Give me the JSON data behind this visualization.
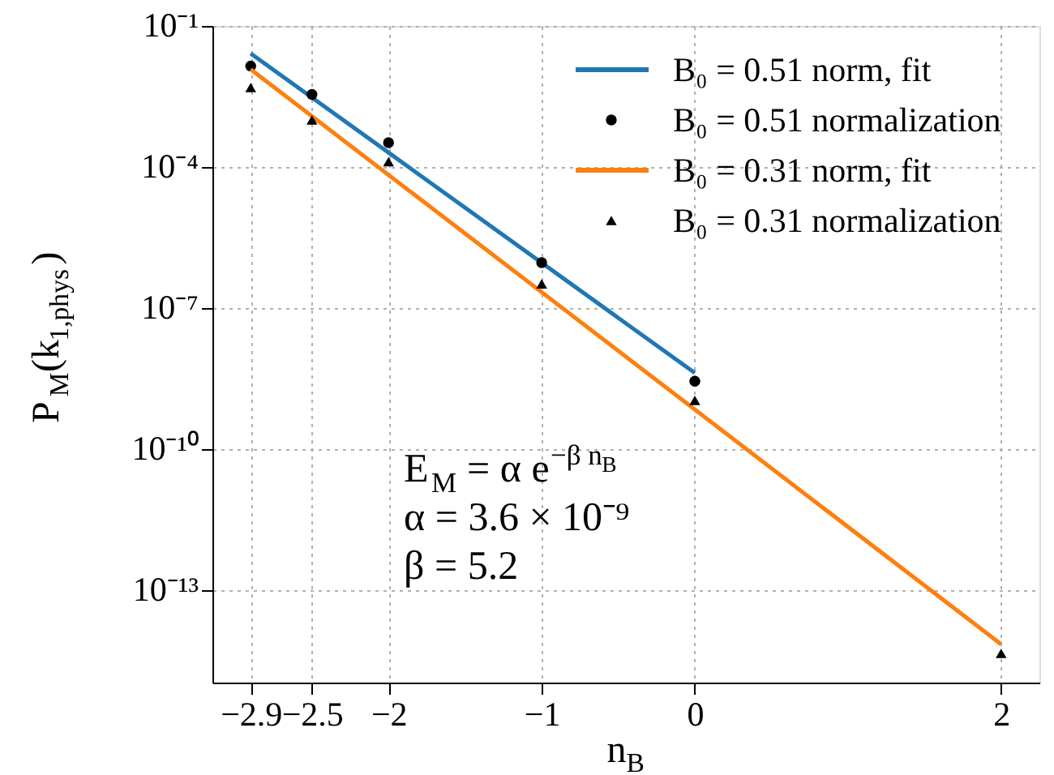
{
  "chart_data": {
    "type": "line",
    "xlabel": "n$_{B}$",
    "ylabel": "P$_{M}$(k$_{1,phys}$)",
    "xlim": [
      -3.15,
      2.25
    ],
    "xticks": [
      {
        "value": -2.9,
        "label": "−2.9"
      },
      {
        "value": -2.5,
        "label": "−2.5"
      },
      {
        "value": -2,
        "label": "−2"
      },
      {
        "value": -1,
        "label": "−1"
      },
      0,
      2
    ],
    "ylim": [
      1.1e-15,
      0.1
    ],
    "log": "y",
    "yticks": [
      {
        "value": 0.1,
        "label": "10⁻¹"
      },
      {
        "value": 0.0001,
        "label": "10⁻⁴"
      },
      {
        "value": 1e-07,
        "label": "10⁻⁷"
      },
      {
        "value": 1e-10,
        "label": "10⁻¹⁰"
      },
      {
        "value": 1e-13,
        "label": "10⁻¹³"
      }
    ],
    "grid": true,
    "legend": "top right",
    "series": [
      {
        "name": "B₀ = 0.51 norm, fit",
        "color": "#1f77b4",
        "marker": "none",
        "x": [
          -2.9,
          0
        ],
        "values": [
          0.026,
          4.2e-09
        ]
      },
      {
        "name": "B₀ = 0.51 normalization",
        "type": "scatter",
        "color": "#000000",
        "marker": "circle",
        "x": [
          -2.9,
          -2.5,
          -2,
          -1,
          0
        ],
        "values": [
          0.014,
          0.0035,
          0.00033,
          9.3e-07,
          2.8e-09
        ]
      },
      {
        "name": "B₀ = 0.31 norm, fit",
        "color": "#ff7f0e",
        "marker": "none",
        "x": [
          -2.9,
          2
        ],
        "values": [
          0.012,
          7.2e-15
        ]
      },
      {
        "name": "B₀ = 0.31 normalization",
        "type": "scatter",
        "color": "#000000",
        "marker": "triangle",
        "x": [
          -2.9,
          -2.5,
          -2,
          -1,
          0,
          2
        ],
        "values": [
          0.0049,
          0.001,
          0.00013,
          3.3e-07,
          1.1e-09,
          4.6e-15
        ]
      }
    ],
    "annotations": [
      "E$_{M}$ = α e$^{−β n}$$_{B}$",
      "α = 3.6 × 10⁻⁹",
      "β = 5.2"
    ]
  }
}
